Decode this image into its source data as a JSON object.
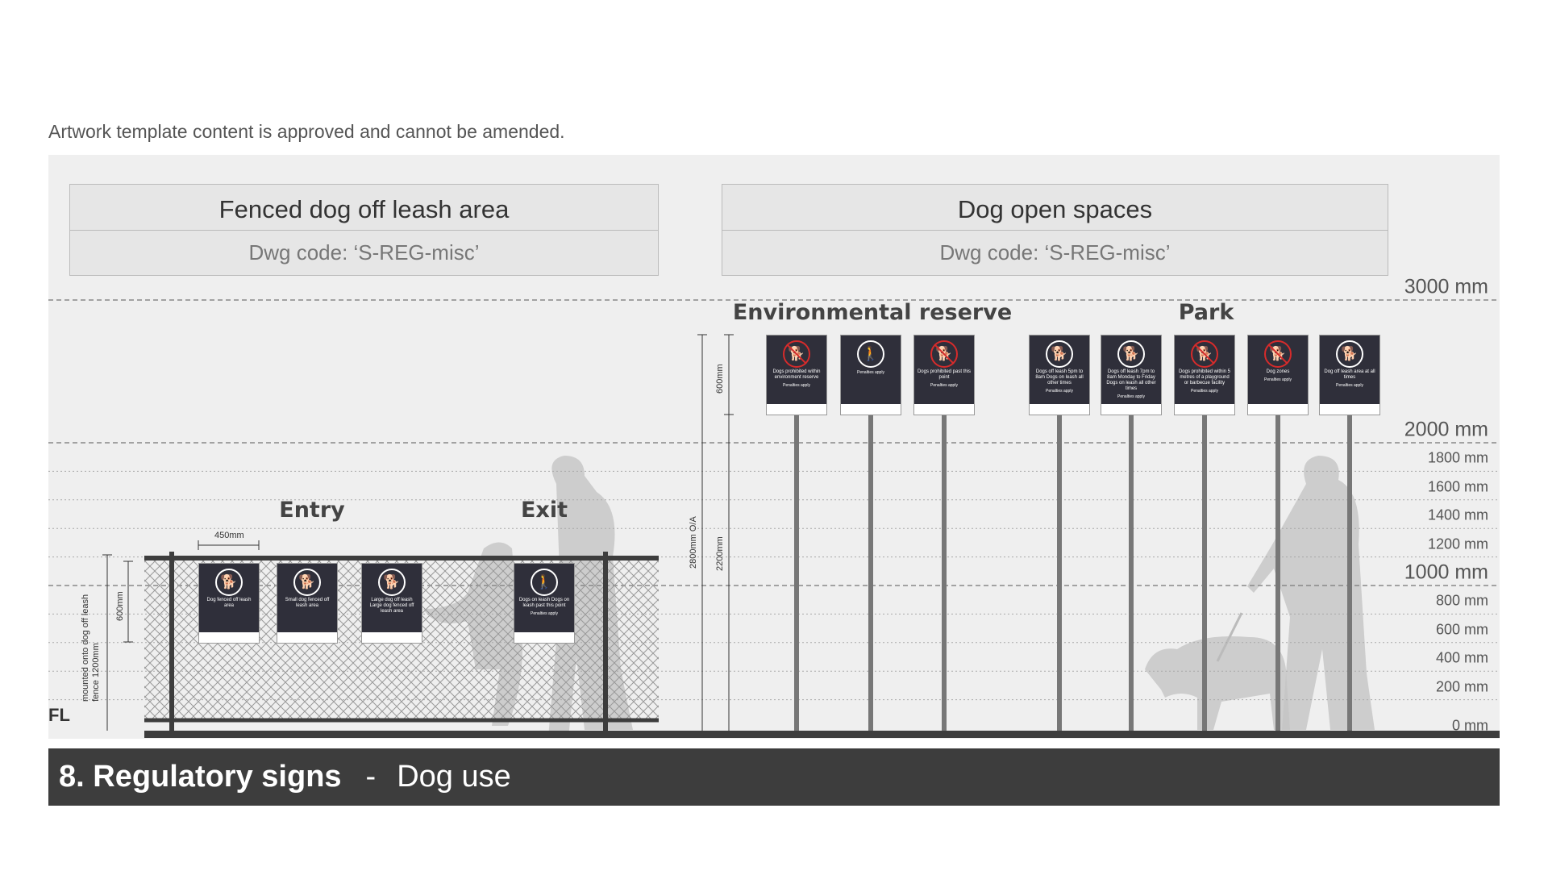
{
  "note": "Artwork template content is approved and cannot be amended.",
  "left_box": {
    "title": "Fenced dog off leash area",
    "code": "Dwg code: ‘S-REG-misc’"
  },
  "right_box": {
    "title": "Dog open spaces",
    "code": "Dwg code: ‘S-REG-misc’"
  },
  "scale": [
    {
      "label": "3000 mm",
      "mm": 3000,
      "major": true
    },
    {
      "label": "2000 mm",
      "mm": 2000,
      "major": true
    },
    {
      "label": "1800 mm",
      "mm": 1800
    },
    {
      "label": "1600 mm",
      "mm": 1600
    },
    {
      "label": "1400 mm",
      "mm": 1400
    },
    {
      "label": "1200 mm",
      "mm": 1200
    },
    {
      "label": "1000 mm",
      "mm": 1000,
      "major": true
    },
    {
      "label": "800 mm",
      "mm": 800
    },
    {
      "label": "600 mm",
      "mm": 600
    },
    {
      "label": "400 mm",
      "mm": 400
    },
    {
      "label": "200 mm",
      "mm": 200
    },
    {
      "label": "0 mm",
      "mm": 0
    }
  ],
  "headings": {
    "env": "Environmental reserve",
    "park": "Park",
    "entry": "Entry",
    "exit": "Exit"
  },
  "dims": {
    "w450": "450mm",
    "h600": "600mm",
    "fence": "mounted onto dog off leash fence 1200mm",
    "fl": "FL",
    "oa": "2800mm O/A",
    "s600": "600mm",
    "p2200": "2200mm"
  },
  "signs": {
    "fence": [
      {
        "icon": "dog",
        "no": false,
        "text": "Dog fenced off leash area"
      },
      {
        "icon": "small-dog",
        "no": false,
        "text": "Small dog fenced off leash area"
      },
      {
        "icon": "large-dog",
        "no": false,
        "text": "Large dog off leash Large dog fenced off leash area"
      },
      {
        "icon": "person-dog",
        "no": false,
        "text": "Dogs on leash Dogs on leash past this point",
        "pen": "Penalties apply"
      }
    ],
    "env": [
      {
        "icon": "dog",
        "no": true,
        "text": "Dogs prohibited within environment reserve",
        "pen": "Penalties apply"
      },
      {
        "icon": "person-dog",
        "no": false,
        "text": "",
        "pen": "Penalties apply"
      },
      {
        "icon": "dog",
        "no": true,
        "text": "Dogs prohibited past this point",
        "pen": "Penalties apply"
      }
    ],
    "park": [
      {
        "icon": "dog",
        "no": false,
        "text": "Dogs off leash 5pm to 8am Dogs on leash all other times",
        "pen": "Penalties apply"
      },
      {
        "icon": "dog",
        "no": false,
        "text": "Dogs off leash 7pm to 8am Monday to Friday Dogs on leash all other times",
        "pen": "Penalties apply"
      },
      {
        "icon": "dog",
        "no": true,
        "text": "Dogs prohibited within 5 metres of a playground or barbecue facility",
        "pen": "Penalties apply"
      },
      {
        "icon": "dog-zones",
        "no": true,
        "text": "Dog zones",
        "pen": "Penalties apply"
      },
      {
        "icon": "dog",
        "no": false,
        "text": "Dog off leash area at all times",
        "pen": "Penalties apply"
      }
    ]
  },
  "band": {
    "title": "8. Regulatory signs",
    "sep": "-",
    "subtitle": "Dog use"
  },
  "colors": {
    "panel": "#efefef",
    "sign": "#2f2f3a",
    "prohibited": "#d62b2b",
    "band": "#3d3d3d"
  }
}
